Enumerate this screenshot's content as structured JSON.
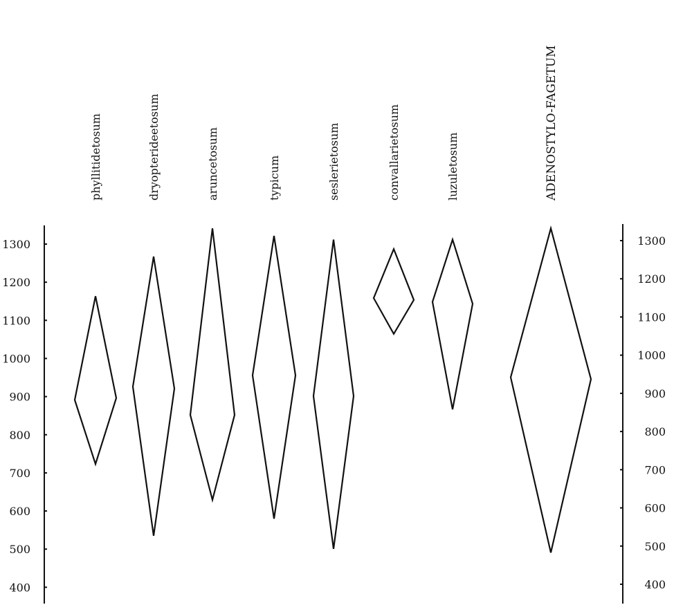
{
  "chart_data": {
    "type": "range-diamond",
    "title": "",
    "xlabel": "",
    "ylabel": "",
    "ylim": [
      400,
      1350
    ],
    "y_ticks": [
      400,
      500,
      600,
      700,
      800,
      900,
      1000,
      1100,
      1200,
      1300
    ],
    "y_tick_labels": [
      "400",
      "500",
      "600",
      "700",
      "800",
      "900",
      "1000",
      "1100",
      "1200",
      "1300"
    ],
    "axes": [
      "left",
      "right"
    ],
    "grid": false,
    "categories": [
      "phyllitidetosum",
      "dryopterideetosum",
      "aruncetosum",
      "typicum",
      "seslerietosum",
      "convallarietosum",
      "luzuletosum",
      "ADENOSTYLO-FAGETUM"
    ],
    "series": [
      {
        "category": "phyllitidetosum",
        "min": 715,
        "max": 1160,
        "mid_left": 885,
        "mid_right": 890
      },
      {
        "category": "dryopterideetosum",
        "min": 525,
        "max": 1265,
        "mid_left": 920,
        "mid_right": 915
      },
      {
        "category": "aruncetosum",
        "min": 620,
        "max": 1340,
        "mid_left": 845,
        "mid_right": 845
      },
      {
        "category": "typicum",
        "min": 570,
        "max": 1320,
        "mid_left": 950,
        "mid_right": 950
      },
      {
        "category": "seslerietosum",
        "min": 490,
        "max": 1310,
        "mid_left": 895,
        "mid_right": 895
      },
      {
        "category": "convallarietosum",
        "min": 1060,
        "max": 1285,
        "mid_left": 1155,
        "mid_right": 1150
      },
      {
        "category": "luzuletosum",
        "min": 860,
        "max": 1310,
        "mid_left": 1145,
        "mid_right": 1140
      },
      {
        "category": "ADENOSTYLO-FAGETUM",
        "min": 480,
        "max": 1340,
        "mid_left": 945,
        "mid_right": 940
      }
    ]
  }
}
